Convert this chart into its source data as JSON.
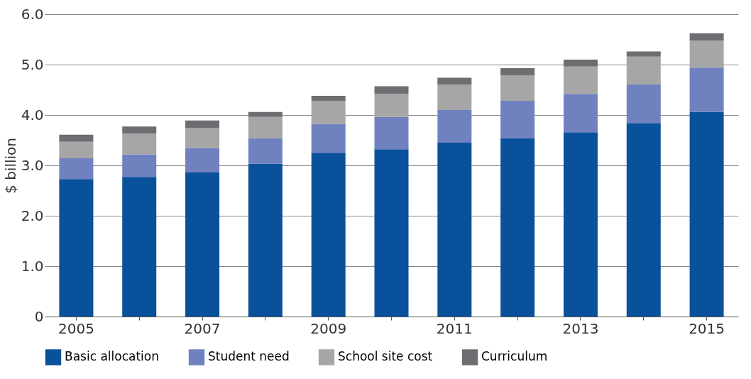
{
  "chart_data": {
    "type": "bar",
    "stacked": true,
    "ylabel": "$ billion",
    "categories": [
      "2005",
      null,
      "2007",
      null,
      "2009",
      null,
      "2011",
      null,
      "2013",
      null,
      "2015"
    ],
    "series": [
      {
        "name": "Basic allocation",
        "color": "#0a519c",
        "values": [
          2.73,
          2.77,
          2.86,
          3.03,
          3.25,
          3.32,
          3.45,
          3.54,
          3.66,
          3.83,
          4.06
        ]
      },
      {
        "name": "Student need",
        "color": "#6f82bf",
        "values": [
          0.41,
          0.45,
          0.48,
          0.51,
          0.57,
          0.64,
          0.65,
          0.74,
          0.76,
          0.78,
          0.88
        ]
      },
      {
        "name": "School site cost",
        "color": "#a6a6a6",
        "values": [
          0.33,
          0.41,
          0.4,
          0.42,
          0.46,
          0.46,
          0.5,
          0.5,
          0.54,
          0.55,
          0.54
        ]
      },
      {
        "name": "Curriculum",
        "color": "#6d6e71",
        "values": [
          0.14,
          0.14,
          0.15,
          0.1,
          0.1,
          0.15,
          0.14,
          0.15,
          0.14,
          0.1,
          0.14
        ]
      }
    ],
    "ylim": [
      0,
      6
    ],
    "yticks": [
      0,
      {
        "value": 1,
        "label": "1.0"
      },
      {
        "value": 2,
        "label": "2.0"
      },
      {
        "value": 3,
        "label": "3.0"
      },
      {
        "value": 4,
        "label": "4.0"
      },
      {
        "value": 5,
        "label": "5.0"
      },
      {
        "value": 6,
        "label": "6.0"
      }
    ],
    "grid": "y",
    "legend": "bottom"
  }
}
